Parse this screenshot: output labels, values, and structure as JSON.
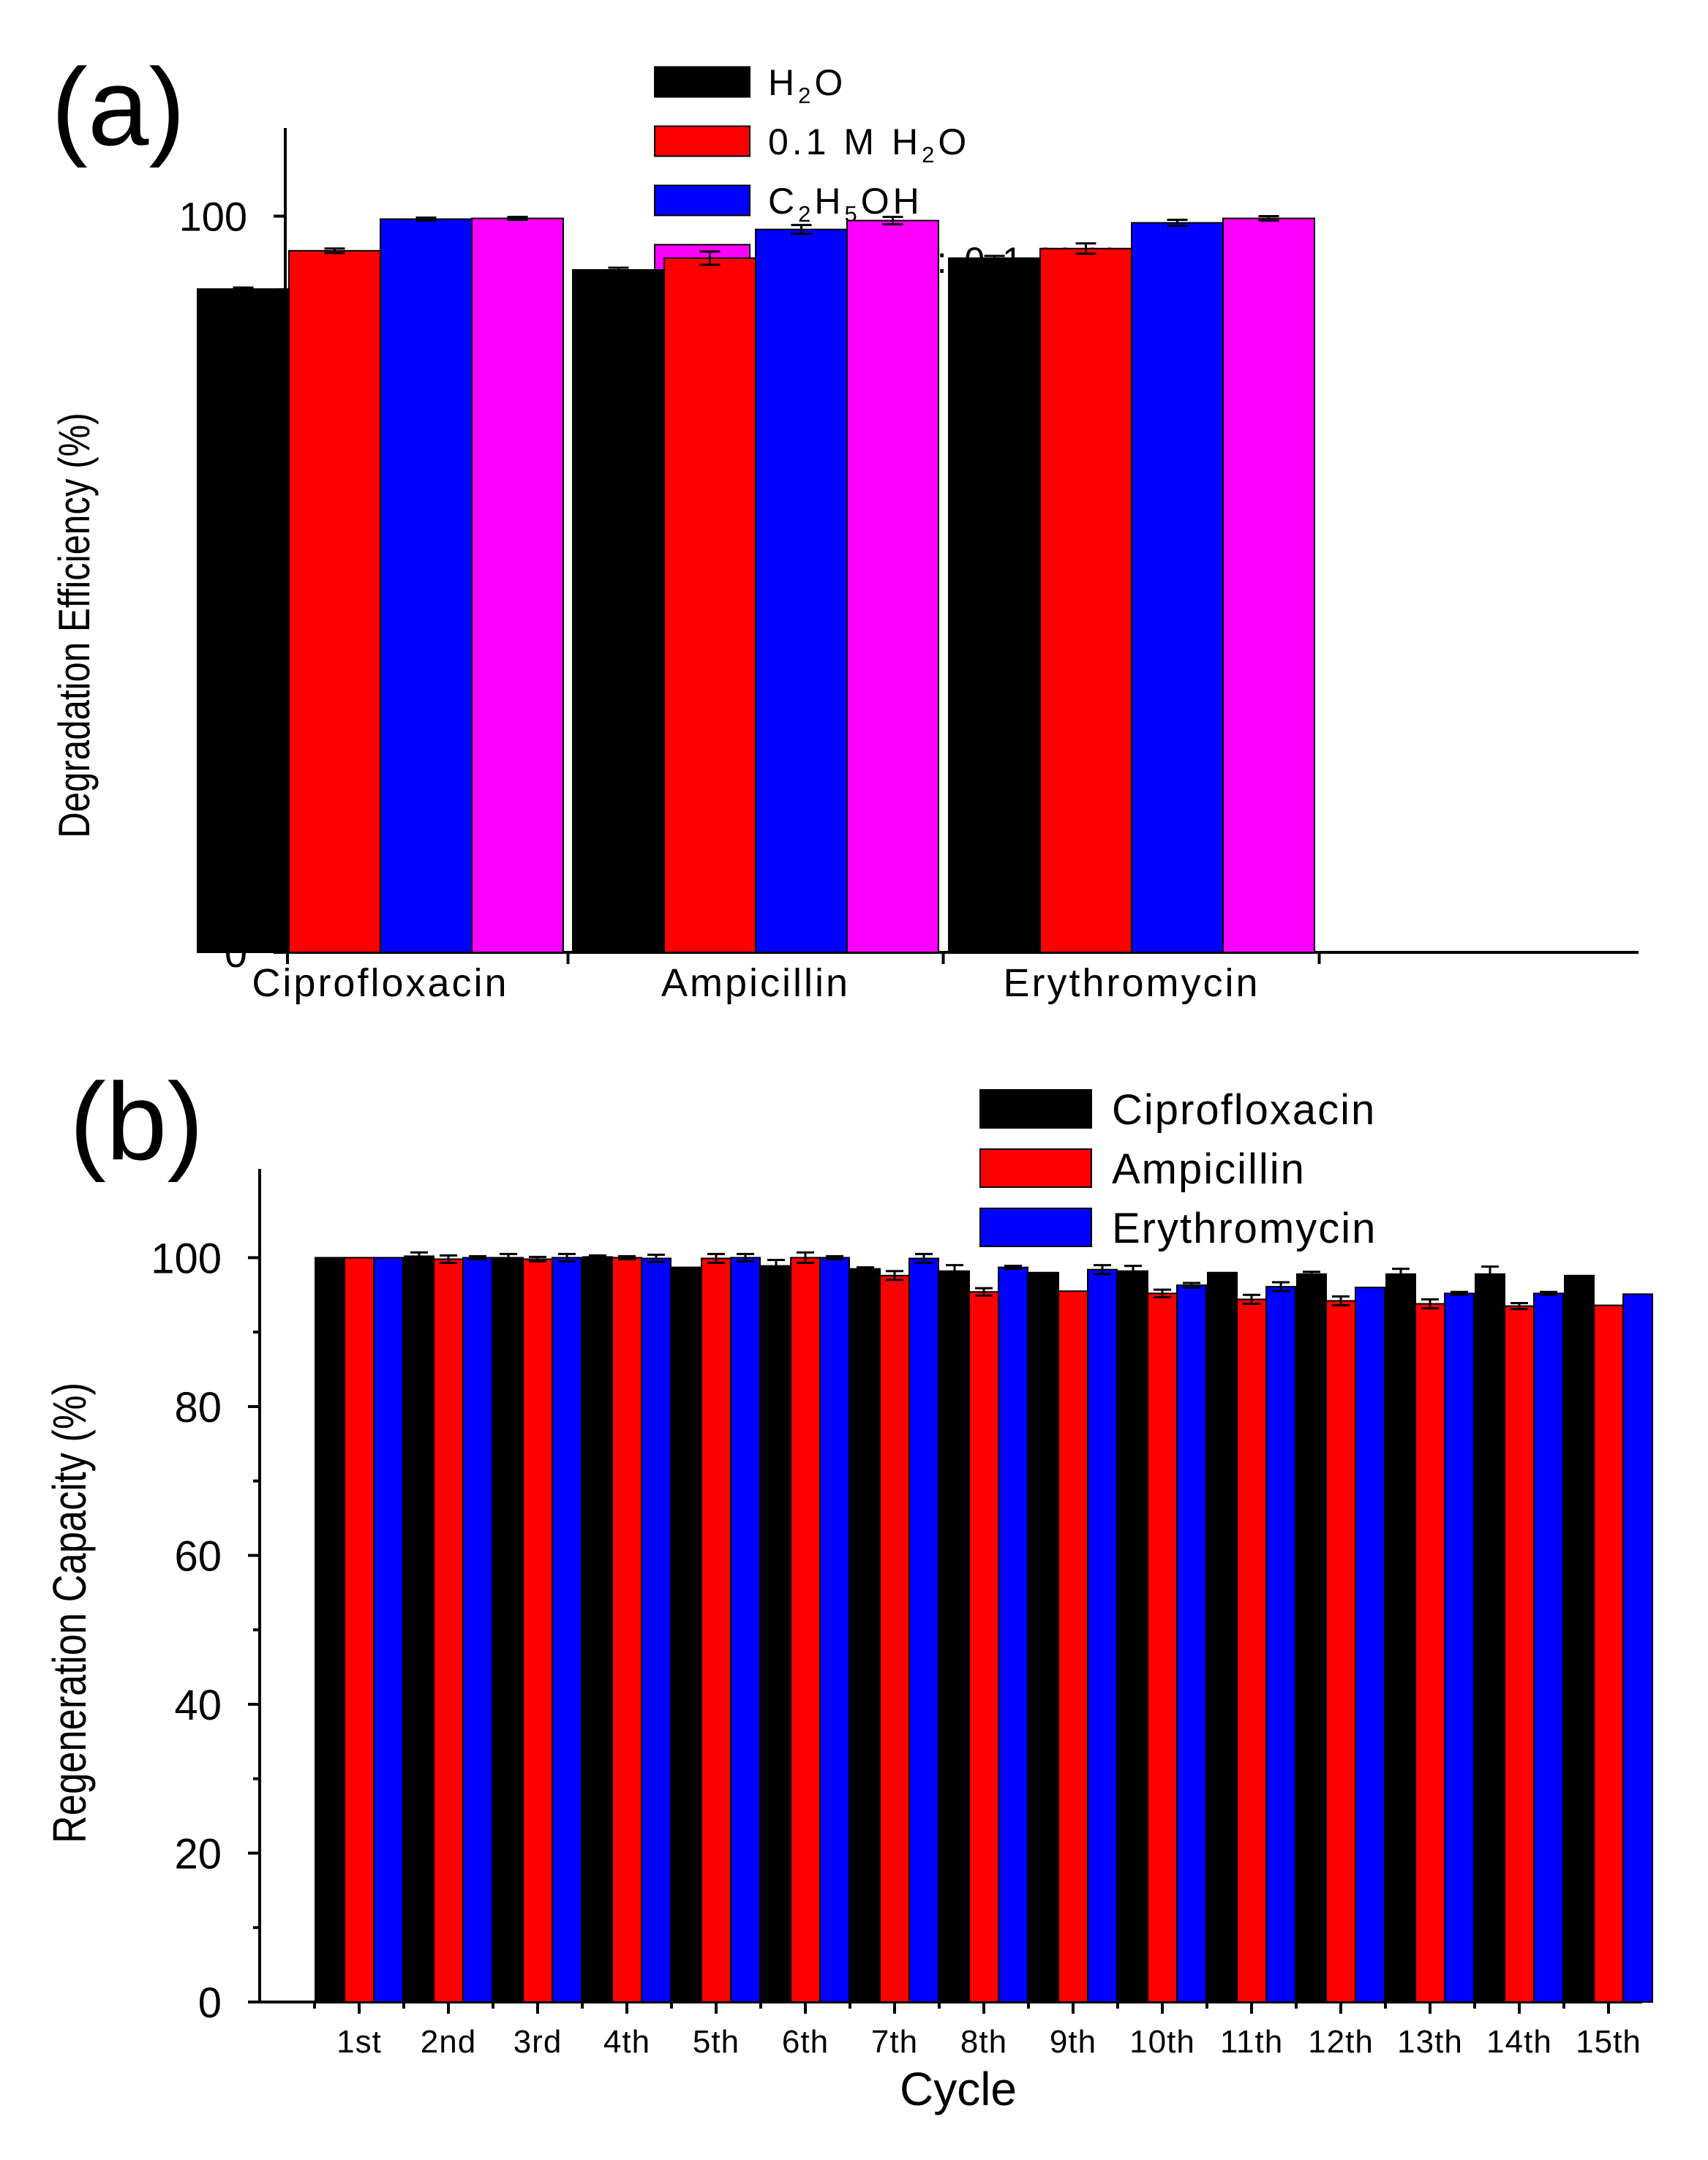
{
  "chart_data": [
    {
      "type": "bar",
      "panel_label": "(a)",
      "ylabel": "Degradation Efficiency (%)",
      "xlabel": "",
      "ylim": [
        0,
        108
      ],
      "yticks": [
        0,
        20,
        40,
        60,
        80,
        100
      ],
      "categories": [
        "Ciprofloxacin",
        "Ampicillin",
        "Erythromycin"
      ],
      "legend_position": "top-center",
      "series": [
        {
          "name": "H2O",
          "legend": [
            [
              "H",
              ""
            ],
            [
              "2",
              "sub"
            ],
            [
              "O",
              ""
            ]
          ],
          "color": "#000000",
          "values": [
            90.1,
            92.7,
            94.3
          ],
          "errors": [
            0.2,
            0.3,
            0.3
          ]
        },
        {
          "name": "0.1 M H2O",
          "legend": [
            [
              "0.1 M H",
              ""
            ],
            [
              "2",
              "sub"
            ],
            [
              "O",
              ""
            ]
          ],
          "color": "#ff0000",
          "values": [
            95.3,
            94.3,
            95.6
          ],
          "errors": [
            0.3,
            0.9,
            0.7
          ]
        },
        {
          "name": "C2H5OH",
          "legend": [
            [
              "C",
              ""
            ],
            [
              "2",
              "sub"
            ],
            [
              "H",
              ""
            ],
            [
              "5",
              "sub"
            ],
            [
              "OH",
              ""
            ]
          ],
          "color": "#0000ff",
          "values": [
            99.6,
            98.2,
            99.1
          ],
          "errors": [
            0.2,
            0.6,
            0.4
          ]
        },
        {
          "name": "C2H5OH : 0.1 M H2O (3:2)",
          "legend": [
            [
              "C",
              ""
            ],
            [
              "2",
              "sub"
            ],
            [
              "H",
              ""
            ],
            [
              "5",
              "sub"
            ],
            [
              "OH : 0.1 M H",
              ""
            ],
            [
              "2",
              "sub"
            ],
            [
              "O (3:2)",
              ""
            ]
          ],
          "color": "#ff00ff",
          "values": [
            99.7,
            99.4,
            99.7
          ],
          "errors": [
            0.2,
            0.5,
            0.3
          ]
        }
      ]
    },
    {
      "type": "bar",
      "panel_label": "(b)",
      "ylabel": "Regeneration Capacity (%)",
      "xlabel": "Cycle",
      "ylim": [
        0,
        108
      ],
      "yticks": [
        0,
        20,
        40,
        60,
        80,
        100
      ],
      "categories": [
        "1st",
        "2nd",
        "3rd",
        "4th",
        "5th",
        "6th",
        "7th",
        "8th",
        "9th",
        "10th",
        "11th",
        "12th",
        "13th",
        "14th",
        "15th"
      ],
      "legend_position": "top-right",
      "series": [
        {
          "name": "Ciprofloxacin",
          "color": "#000000",
          "values": [
            100.0,
            100.2,
            100.0,
            100.1,
            98.7,
            98.9,
            98.5,
            98.2,
            98.0,
            98.2,
            98.0,
            97.8,
            97.8,
            97.8,
            97.6
          ],
          "errors": [
            0,
            0.5,
            0.5,
            0.2,
            0,
            0.8,
            0.2,
            0.8,
            0,
            0.7,
            0,
            0.3,
            0.7,
            1.0,
            0
          ]
        },
        {
          "name": "Ampicillin",
          "color": "#ff0000",
          "values": [
            100.0,
            99.8,
            99.8,
            100.0,
            99.9,
            100.0,
            97.6,
            95.4,
            95.5,
            95.2,
            94.4,
            94.2,
            93.8,
            93.5,
            93.6
          ],
          "errors": [
            0,
            0.5,
            0.3,
            0.2,
            0.6,
            0.7,
            0.6,
            0.5,
            0,
            0.5,
            0.6,
            0.6,
            0.6,
            0.4,
            0
          ]
        },
        {
          "name": "Erythromycin",
          "color": "#0000ff",
          "values": [
            100.0,
            100.0,
            100.0,
            99.9,
            100.0,
            100.0,
            99.9,
            98.7,
            98.4,
            96.3,
            96.1,
            96.0,
            95.2,
            95.2,
            95.1
          ],
          "errors": [
            0,
            0.2,
            0.5,
            0.5,
            0.5,
            0.2,
            0.6,
            0.2,
            0.6,
            0.3,
            0.6,
            0,
            0.2,
            0.2,
            0
          ]
        }
      ]
    }
  ]
}
